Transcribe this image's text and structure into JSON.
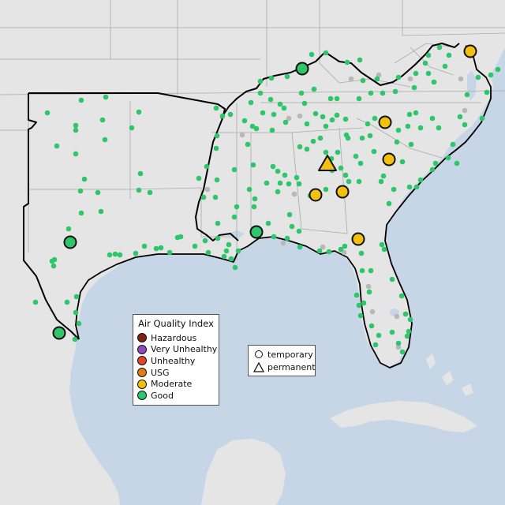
{
  "colors": {
    "ocean": "#c6d6e6",
    "land": "#e5e5e5",
    "land_outside": "#eaeaea",
    "border": "#a9a9a9",
    "region_outline": "#000000",
    "lake": "#c6d6e6",
    "monitor_inactive": "#b8b8b8"
  },
  "legend_aqi": {
    "title": "Air Quality Index",
    "items": [
      {
        "label": "Hazardous",
        "color": "#7e2417"
      },
      {
        "label": "Very Unhealthy",
        "color": "#8f4bb8"
      },
      {
        "label": "Unhealthy",
        "color": "#e8432a"
      },
      {
        "label": "USG",
        "color": "#e57a14"
      },
      {
        "label": "Moderate",
        "color": "#f2c10e"
      },
      {
        "label": "Good",
        "color": "#2ec66b"
      }
    ]
  },
  "legend_type": {
    "items": [
      {
        "label": "temporary",
        "shape": "circle"
      },
      {
        "label": "permanent",
        "shape": "triangle"
      }
    ]
  }
}
